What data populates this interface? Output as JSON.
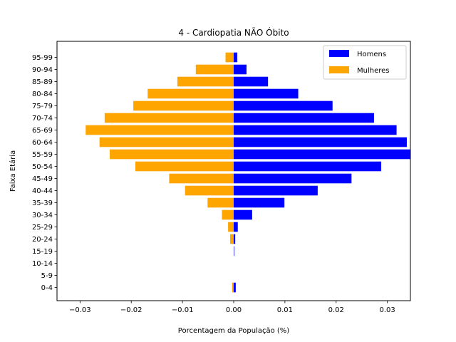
{
  "chart_data": {
    "type": "bar",
    "orientation": "horizontal",
    "title": "4 - Cardiopatia NÃO Óbito",
    "xlabel": "Porcentagem da População (%)",
    "ylabel": "Faixa Etária",
    "xlim": [
      -0.0345,
      0.0345
    ],
    "xticks": [
      -0.03,
      -0.02,
      -0.01,
      0.0,
      0.01,
      0.02,
      0.03
    ],
    "xtick_labels": [
      "−0.03",
      "−0.02",
      "−0.01",
      "0.00",
      "0.01",
      "0.02",
      "0.03"
    ],
    "grid": false,
    "legend_position": "top-right",
    "categories": [
      "0-4",
      "5-9",
      "10-14",
      "15-19",
      "20-24",
      "25-29",
      "30-34",
      "35-39",
      "40-44",
      "45-49",
      "50-54",
      "55-59",
      "60-64",
      "65-69",
      "70-74",
      "75-79",
      "80-84",
      "85-89",
      "90-94",
      "95-99"
    ],
    "series": [
      {
        "name": "Homens",
        "color": "#0000ff",
        "values": [
          0.0004,
          0.0,
          0.0,
          0.0001,
          0.0003,
          0.0008,
          0.0036,
          0.0099,
          0.0164,
          0.023,
          0.0288,
          0.0345,
          0.0338,
          0.0318,
          0.0274,
          0.0193,
          0.0126,
          0.0067,
          0.0025,
          0.0007
        ]
      },
      {
        "name": "Mulheres",
        "color": "#ffa500",
        "values": [
          -0.0003,
          0.0,
          0.0,
          0.0,
          -0.0007,
          -0.0011,
          -0.0023,
          -0.0051,
          -0.0095,
          -0.0126,
          -0.0192,
          -0.0242,
          -0.0262,
          -0.0289,
          -0.0252,
          -0.0196,
          -0.0168,
          -0.011,
          -0.0074,
          -0.0016
        ]
      }
    ]
  }
}
